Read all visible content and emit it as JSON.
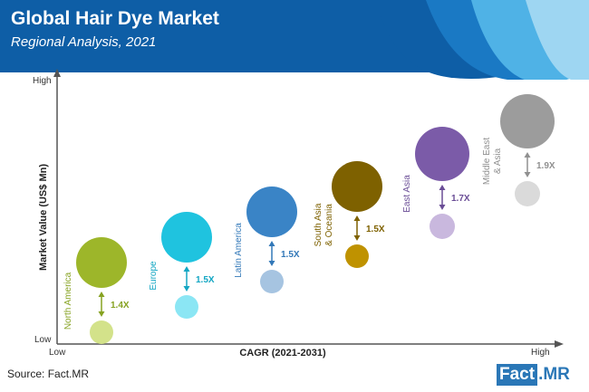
{
  "header": {
    "title": "Global Hair Dye Market",
    "subtitle": "Regional Analysis, 2021"
  },
  "colors": {
    "header_bg": "#0e5ea6",
    "wave_dark": "#1a79c4",
    "wave_mid": "#4fb2e6",
    "wave_light": "#9ed6f2",
    "axis": "#555555"
  },
  "chart_data": {
    "type": "bubble",
    "xlabel": "CAGR (2021-2031)",
    "ylabel": "Market Value (US$ Mn)",
    "x_ticks": [
      "Low",
      "High"
    ],
    "y_ticks": [
      "Low",
      "High"
    ],
    "grid": false,
    "series": [
      {
        "name": "North America",
        "multiplier": "1.4X",
        "color": "#9db62a",
        "light": "#d3e28a",
        "text_color": "#86a221",
        "rank": 1
      },
      {
        "name": "Europe",
        "multiplier": "1.5X",
        "color": "#1fc3df",
        "light": "#8be6f4",
        "text_color": "#13a6c3",
        "rank": 2
      },
      {
        "name": "Latin America",
        "multiplier": "1.5X",
        "color": "#3a84c6",
        "light": "#a6c4e1",
        "text_color": "#3278b8",
        "rank": 3
      },
      {
        "name": "South Asia & Oceania",
        "multiplier": "1.5X",
        "color": "#7e6100",
        "light": "#bf9200",
        "text_color": "#7e6100",
        "rank": 4
      },
      {
        "name": "East Asia",
        "multiplier": "1.7X",
        "color": "#7b5ba8",
        "light": "#c9b8de",
        "text_color": "#6a4d96",
        "rank": 5
      },
      {
        "name": "Middle East & Asia",
        "multiplier": "1.9X",
        "color": "#9c9c9c",
        "light": "#dadada",
        "text_color": "#909090",
        "rank": 6
      }
    ]
  },
  "footer": {
    "source": "Source: Fact.MR",
    "brand_main": "Fact",
    "brand_suffix": ".MR"
  }
}
